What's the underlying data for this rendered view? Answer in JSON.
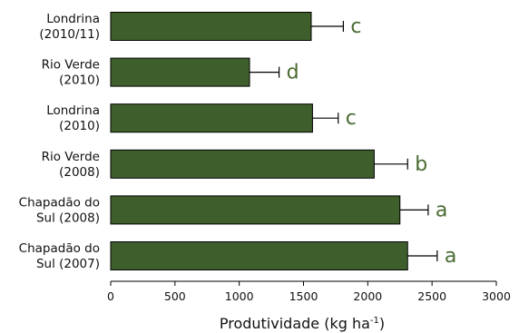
{
  "chart_data": {
    "type": "bar",
    "orientation": "horizontal",
    "title": "",
    "xlabel": "Produtividade (kg ha-1)",
    "xlabel_parts": {
      "main": "Produtividade (kg ha",
      "sup": "-1",
      "end": ")"
    },
    "ylabel": "",
    "xlim": [
      0,
      3000
    ],
    "xticks": [
      0,
      500,
      1000,
      1500,
      2000,
      2500,
      3000
    ],
    "grid": false,
    "legend": "none",
    "bar_color": "#3e5f2c",
    "letter_color": "#4a6b32",
    "categories": [
      {
        "line1": "Londrina",
        "line2": "(2010/11)",
        "value": 1560,
        "error": 250,
        "letter": "c"
      },
      {
        "line1": "Rio Verde",
        "line2": "(2010)",
        "value": 1080,
        "error": 230,
        "letter": "d"
      },
      {
        "line1": "Londrina",
        "line2": "(2010)",
        "value": 1570,
        "error": 200,
        "letter": "c"
      },
      {
        "line1": "Rio Verde",
        "line2": "(2008)",
        "value": 2050,
        "error": 260,
        "letter": "b"
      },
      {
        "line1": "Chapadão do",
        "line2": "Sul (2008)",
        "value": 2250,
        "error": 220,
        "letter": "a"
      },
      {
        "line1": "Chapadão do",
        "line2": "Sul (2007)",
        "value": 2310,
        "error": 230,
        "letter": "a"
      }
    ]
  }
}
